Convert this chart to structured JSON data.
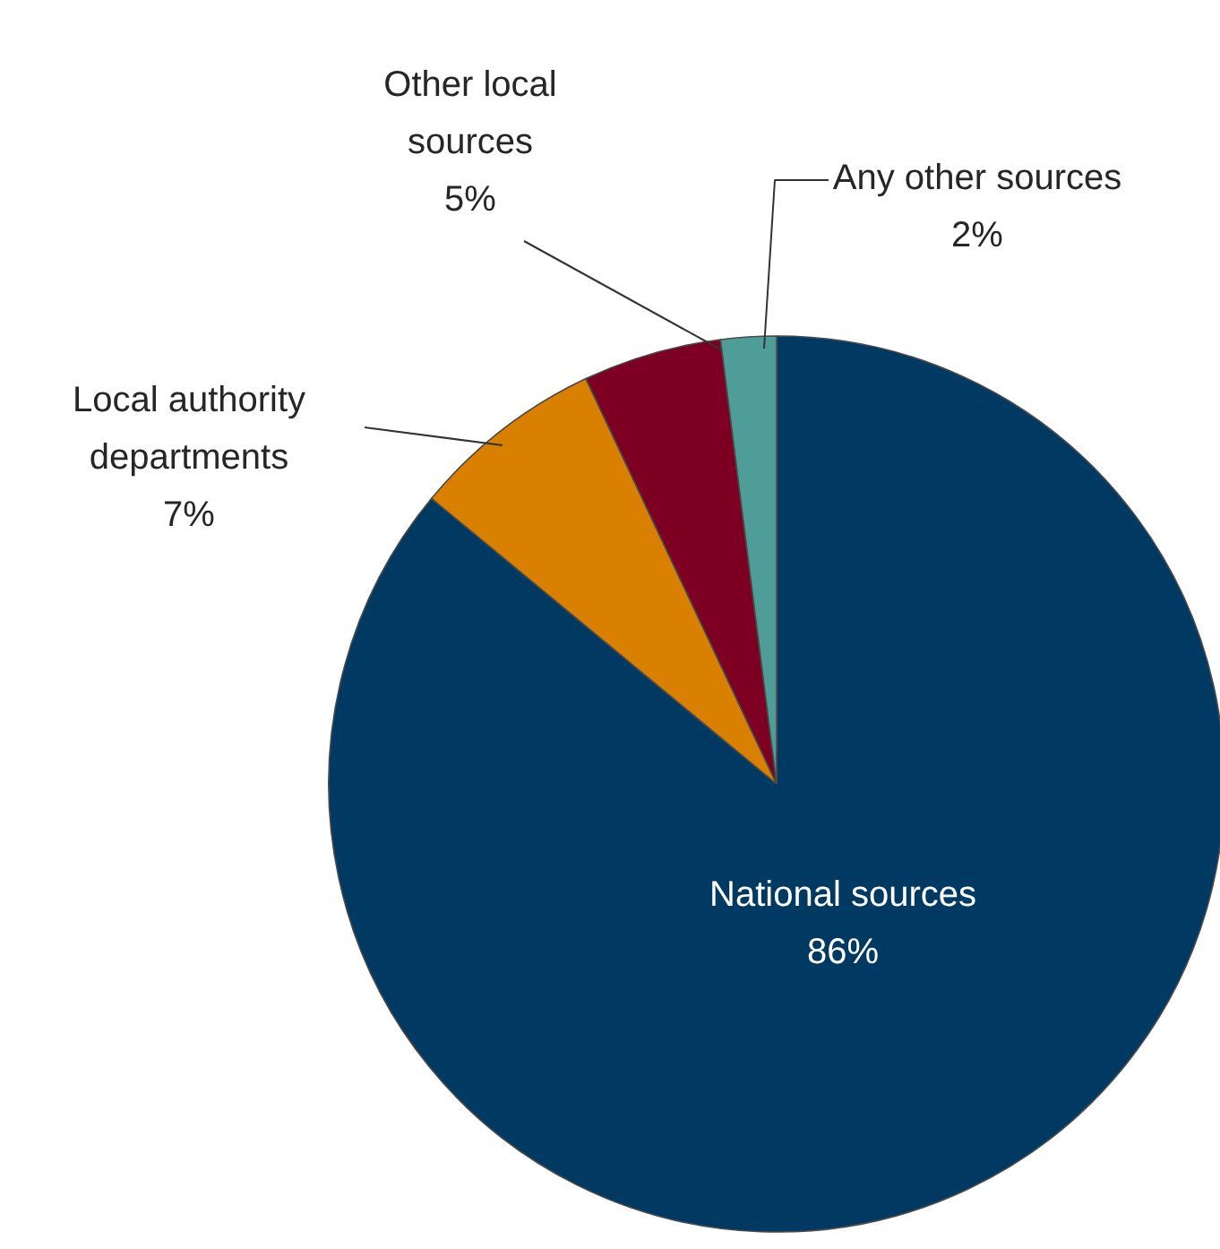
{
  "chart_data": {
    "type": "pie",
    "categories": [
      "National sources",
      "Local authority departments",
      "Other local sources",
      "Any other sources"
    ],
    "values": [
      86,
      7,
      5,
      2
    ],
    "colors": [
      "#003a63",
      "#d98000",
      "#7d0022",
      "#4e9d98"
    ],
    "value_labels": [
      "86%",
      "7%",
      "5%",
      "2%"
    ]
  }
}
